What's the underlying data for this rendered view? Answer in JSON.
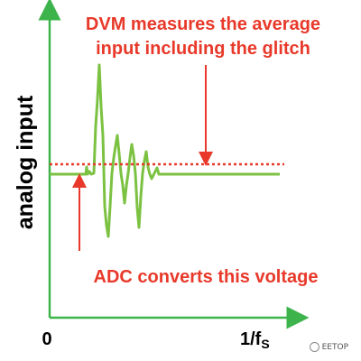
{
  "diagram": {
    "annotation_top": [
      "DVM measures the average",
      "input including the glitch"
    ],
    "annotation_bottom": "ADC converts this voltage",
    "y_axis_label": "analog input",
    "x_axis_origin_label": "0",
    "x_axis_end_label_main": "1/f",
    "x_axis_end_label_sub": "S",
    "colors": {
      "axis": "#3cb44b",
      "signal": "#7cc242",
      "annotation": "#e8392a",
      "average_line": "#e8392a",
      "text": "#000000"
    }
  },
  "watermark": {
    "text": "EETOP",
    "icon": "wechat-logo-icon"
  }
}
